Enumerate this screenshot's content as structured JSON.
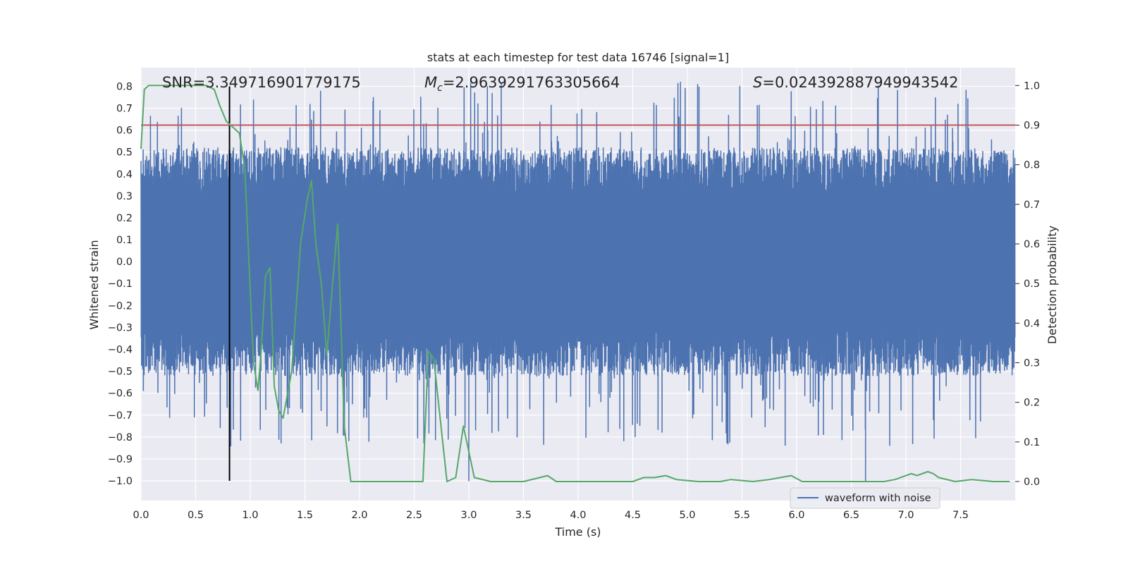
{
  "chart_data": {
    "type": "line",
    "title": "stats at each timestep for test data 16746 [signal=1]",
    "xlabel": "Time (s)",
    "ylabel": "Whitened strain",
    "y2label": "Detection probability",
    "xlim": [
      0.0,
      8.0
    ],
    "ylim": [
      -1.09,
      0.885
    ],
    "y2lim": [
      -0.048,
      1.045
    ],
    "xticks": [
      "0.0",
      "0.5",
      "1.0",
      "1.5",
      "2.0",
      "2.5",
      "3.0",
      "3.5",
      "4.0",
      "4.5",
      "5.0",
      "5.5",
      "6.0",
      "6.5",
      "7.0",
      "7.5"
    ],
    "yticks": [
      "0.8",
      "0.7",
      "0.6",
      "0.5",
      "0.4",
      "0.3",
      "0.2",
      "0.1",
      "0.0",
      "−0.1",
      "−0.2",
      "−0.3",
      "−0.4",
      "−0.5",
      "−0.6",
      "−0.7",
      "−0.8",
      "−0.9",
      "−1.0"
    ],
    "y2ticks": [
      "1.0",
      "0.9",
      "0.8",
      "0.7",
      "0.6",
      "0.5",
      "0.4",
      "0.3",
      "0.2",
      "0.1",
      "0.0"
    ],
    "grid": true,
    "legend_placement": "lower-right",
    "annotations": {
      "snr_text": "SNR=3.349716901779175",
      "mc_symbol": "M",
      "mc_sub": "c",
      "mc_value": "=2.9639291763305664",
      "s_symbol": "S",
      "s_value": "=0.024392887949943542"
    },
    "marker_time": 0.81,
    "threshold_probability": 0.9,
    "series": [
      {
        "name": "waveform with noise",
        "axis": "left",
        "color": "#4c72b0",
        "description": "dense whitened strain noise, envelope roughly ±0.3 with spikes to ±0.8",
        "sample_rate_hz": 2048,
        "envelope": [
          -0.3,
          0.3
        ],
        "max_spike": 0.82,
        "min_spike": -1.0
      },
      {
        "name": "",
        "axis": "right",
        "color": "#55a868",
        "x": [
          0.0,
          0.03,
          0.07,
          0.13,
          0.2,
          0.3,
          0.4,
          0.5,
          0.6,
          0.67,
          0.72,
          0.78,
          0.82,
          0.9,
          0.95,
          1.0,
          1.03,
          1.07,
          1.1,
          1.14,
          1.18,
          1.22,
          1.26,
          1.3,
          1.38,
          1.46,
          1.52,
          1.56,
          1.6,
          1.65,
          1.7,
          1.75,
          1.8,
          1.86,
          1.92,
          2.0,
          2.2,
          2.4,
          2.58,
          2.63,
          2.68,
          2.73,
          2.8,
          2.88,
          2.95,
          3.05,
          3.2,
          3.5,
          3.65,
          3.72,
          3.8,
          4.0,
          4.3,
          4.5,
          4.6,
          4.7,
          4.8,
          4.9,
          5.1,
          5.3,
          5.4,
          5.6,
          5.75,
          5.85,
          5.95,
          6.05,
          6.2,
          6.4,
          6.6,
          6.8,
          6.9,
          7.0,
          7.05,
          7.1,
          7.2,
          7.25,
          7.3,
          7.45,
          7.6,
          7.8,
          7.95
        ],
        "y": [
          0.84,
          0.99,
          1.0,
          1.0,
          1.0,
          1.0,
          1.0,
          1.0,
          1.0,
          0.99,
          0.95,
          0.91,
          0.9,
          0.88,
          0.79,
          0.48,
          0.3,
          0.23,
          0.33,
          0.52,
          0.54,
          0.24,
          0.18,
          0.16,
          0.28,
          0.6,
          0.71,
          0.76,
          0.6,
          0.5,
          0.32,
          0.49,
          0.65,
          0.14,
          0.0,
          0.0,
          0.0,
          0.0,
          0.0,
          0.33,
          0.31,
          0.18,
          0.0,
          0.01,
          0.14,
          0.01,
          0.0,
          0.0,
          0.01,
          0.015,
          0.0,
          0.0,
          0.0,
          0.0,
          0.01,
          0.01,
          0.015,
          0.005,
          0.0,
          0.0,
          0.005,
          0.0,
          0.005,
          0.01,
          0.015,
          0.0,
          0.0,
          0.0,
          0.0,
          0.0,
          0.005,
          0.015,
          0.02,
          0.015,
          0.025,
          0.02,
          0.01,
          0.0,
          0.005,
          0.0,
          0.0
        ]
      }
    ]
  }
}
